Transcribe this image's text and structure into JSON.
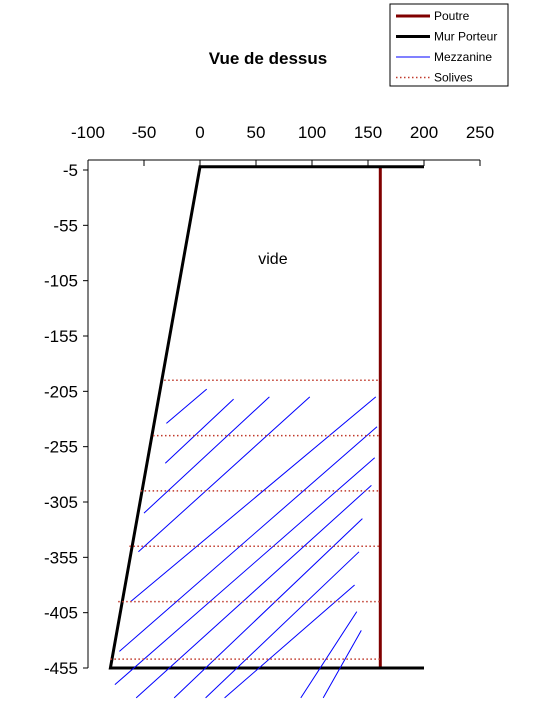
{
  "chart_data": {
    "type": "line",
    "title": "Vue de dessus",
    "xlabel": "",
    "ylabel": "",
    "xlim": [
      -100,
      250
    ],
    "ylim": [
      -455,
      -5
    ],
    "x_ticks": [
      -100,
      -50,
      0,
      50,
      100,
      150,
      200,
      250
    ],
    "y_ticks": [
      -5,
      -55,
      -105,
      -155,
      -205,
      -255,
      -305,
      -355,
      -405,
      -455
    ],
    "x_axis_position": "top",
    "grid": false,
    "legend_position": "top-right",
    "annotation": {
      "text": "vide",
      "x": 52,
      "y": -90
    },
    "series": [
      {
        "name": "Poutre",
        "color": "#800000",
        "style": "solid-thick",
        "segments": [
          [
            [
              161,
              -2
            ],
            [
              161,
              -455
            ]
          ]
        ]
      },
      {
        "name": "Mur Porteur",
        "color": "#000000",
        "style": "solid-thick",
        "segments": [
          [
            [
              200,
              -2
            ],
            [
              0,
              -2
            ],
            [
              -80,
              -455
            ],
            [
              200,
              -455
            ]
          ]
        ]
      },
      {
        "name": "Mezzanine",
        "color": "#0000ff",
        "style": "solid-thin",
        "segments": [
          [
            [
              -30,
              -234
            ],
            [
              6,
              -203
            ]
          ],
          [
            [
              -31,
              -270
            ],
            [
              30,
              -212
            ]
          ],
          [
            [
              -50,
              -315
            ],
            [
              62,
              -210
            ]
          ],
          [
            [
              -55,
              -350
            ],
            [
              98,
              -210
            ]
          ],
          [
            [
              -62,
              -395
            ],
            [
              157,
              -210
            ]
          ],
          [
            [
              -72,
              -440
            ],
            [
              158,
              -237
            ]
          ],
          [
            [
              -76,
              -470
            ],
            [
              156,
              -265
            ]
          ],
          [
            [
              -57,
              -482
            ],
            [
              153,
              -290
            ]
          ],
          [
            [
              -23,
              -482
            ],
            [
              145,
              -320
            ]
          ],
          [
            [
              5,
              -482
            ],
            [
              142,
              -350
            ]
          ],
          [
            [
              22,
              -482
            ],
            [
              138,
              -380
            ]
          ],
          [
            [
              90,
              -482
            ],
            [
              140,
              -404
            ]
          ],
          [
            [
              110,
              -482
            ],
            [
              144,
              -421
            ]
          ]
        ]
      },
      {
        "name": "Solives",
        "color": "#c0392b",
        "style": "dotted",
        "segments": [
          [
            [
              -32,
              -195
            ],
            [
              161,
              -195
            ]
          ],
          [
            [
              -42,
              -245
            ],
            [
              161,
              -245
            ]
          ],
          [
            [
              -53,
              -295
            ],
            [
              161,
              -295
            ]
          ],
          [
            [
              -63,
              -345
            ],
            [
              161,
              -345
            ]
          ],
          [
            [
              -73,
              -395
            ],
            [
              161,
              -395
            ]
          ],
          [
            [
              -80,
              -447
            ],
            [
              161,
              -447
            ]
          ]
        ]
      }
    ]
  }
}
